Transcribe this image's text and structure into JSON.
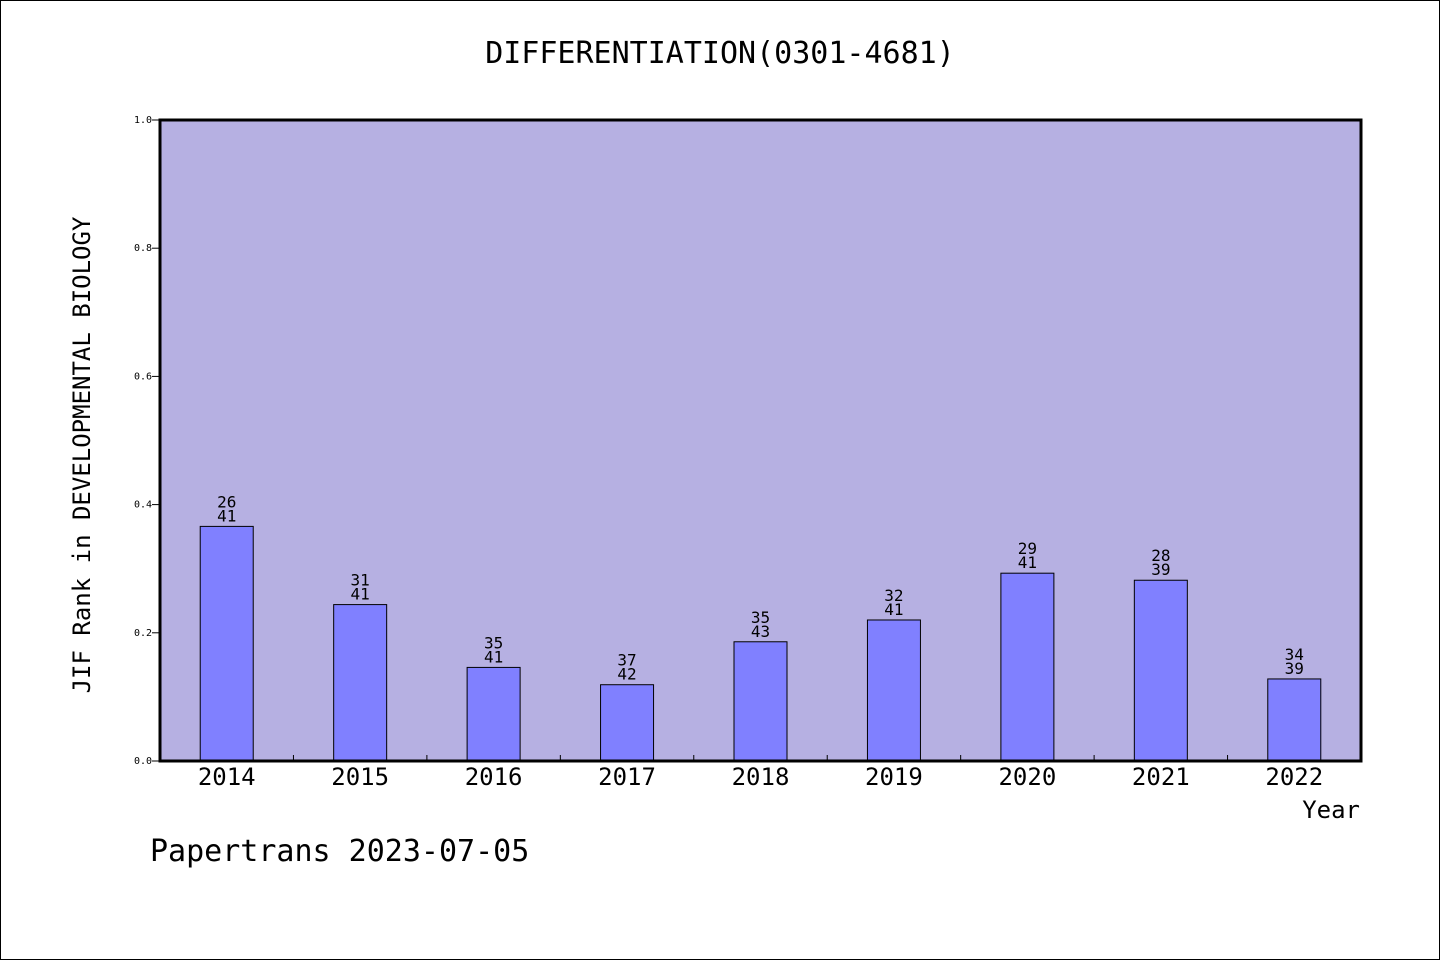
{
  "chart_data": {
    "type": "bar",
    "title": "DIFFERENTIATION(0301-4681)",
    "xlabel": "Year",
    "ylabel": "JIF Rank in DEVELOPMENTAL BIOLOGY",
    "ylim": [
      0,
      1.0
    ],
    "yticks": [
      "0.0",
      "0.2",
      "0.4",
      "0.6",
      "0.8",
      "1.0"
    ],
    "categories": [
      "2014",
      "2015",
      "2016",
      "2017",
      "2018",
      "2019",
      "2020",
      "2021",
      "2022"
    ],
    "values": [
      0.366,
      0.244,
      0.146,
      0.119,
      0.186,
      0.22,
      0.293,
      0.282,
      0.128
    ],
    "rank_labels": [
      {
        "rank": "26",
        "total": "41"
      },
      {
        "rank": "31",
        "total": "41"
      },
      {
        "rank": "35",
        "total": "41"
      },
      {
        "rank": "37",
        "total": "42"
      },
      {
        "rank": "35",
        "total": "43"
      },
      {
        "rank": "32",
        "total": "41"
      },
      {
        "rank": "29",
        "total": "41"
      },
      {
        "rank": "28",
        "total": "39"
      },
      {
        "rank": "34",
        "total": "39"
      }
    ],
    "grid": false,
    "colors": {
      "plot_background": "#b6b0e2",
      "bar": "#8080ff",
      "bar_edge": "#000000"
    }
  },
  "footer": "Papertrans 2023-07-05"
}
